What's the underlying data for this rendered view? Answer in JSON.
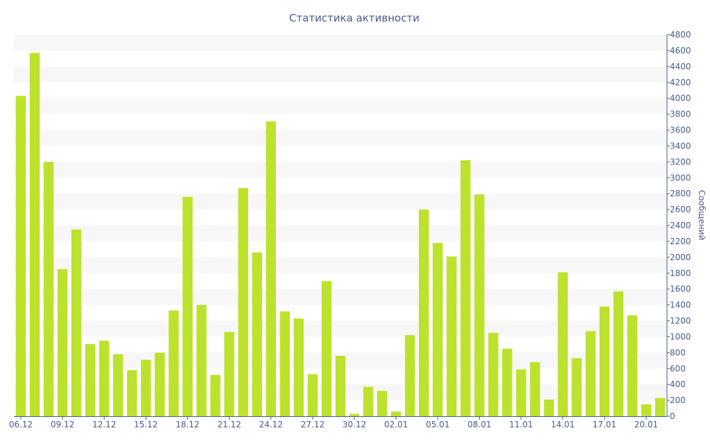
{
  "chart_data": {
    "type": "bar",
    "title": "Статистика активности",
    "ylabel": "Сообщений",
    "ylim": [
      0,
      4800
    ],
    "y_ticks": [
      0,
      200,
      400,
      600,
      800,
      1000,
      1200,
      1400,
      1600,
      1800,
      2000,
      2200,
      2400,
      2600,
      2800,
      3000,
      3200,
      3400,
      3600,
      3800,
      4000,
      4200,
      4400,
      4600,
      4800
    ],
    "y_axis_side": "right",
    "x_tick_labels": [
      "06.12",
      "09.12",
      "12.12",
      "15.12",
      "18.12",
      "21.12",
      "24.12",
      "27.12",
      "30.12",
      "02.01",
      "05.01",
      "08.01",
      "11.01",
      "14.01",
      "17.01",
      "20.01"
    ],
    "x_tick_every": 3,
    "categories": [
      "06.12",
      "07.12",
      "08.12",
      "09.12",
      "10.12",
      "11.12",
      "12.12",
      "13.12",
      "14.12",
      "15.12",
      "16.12",
      "17.12",
      "18.12",
      "19.12",
      "20.12",
      "21.12",
      "22.12",
      "23.12",
      "24.12",
      "25.12",
      "26.12",
      "27.12",
      "28.12",
      "29.12",
      "30.12",
      "31.12",
      "01.01",
      "02.01",
      "03.01",
      "04.01",
      "05.01",
      "06.01",
      "07.01",
      "08.01",
      "09.01",
      "10.01",
      "11.01",
      "12.01",
      "13.01",
      "14.01",
      "15.01",
      "16.01",
      "17.01",
      "18.01",
      "19.01",
      "20.01",
      "21.01"
    ],
    "values": [
      4030,
      4570,
      3200,
      1850,
      2350,
      910,
      950,
      780,
      580,
      710,
      800,
      1330,
      2760,
      1400,
      520,
      1060,
      2870,
      2060,
      3710,
      1320,
      1230,
      530,
      1700,
      760,
      30,
      370,
      320,
      60,
      1020,
      2600,
      2180,
      2010,
      3220,
      2790,
      1050,
      850,
      590,
      680,
      210,
      1810,
      730,
      1070,
      1380,
      1570,
      1270,
      150,
      230
    ],
    "bar_color": "#bce22d",
    "grid": true,
    "grid_color": "#f7f7f7",
    "legend": "none"
  }
}
